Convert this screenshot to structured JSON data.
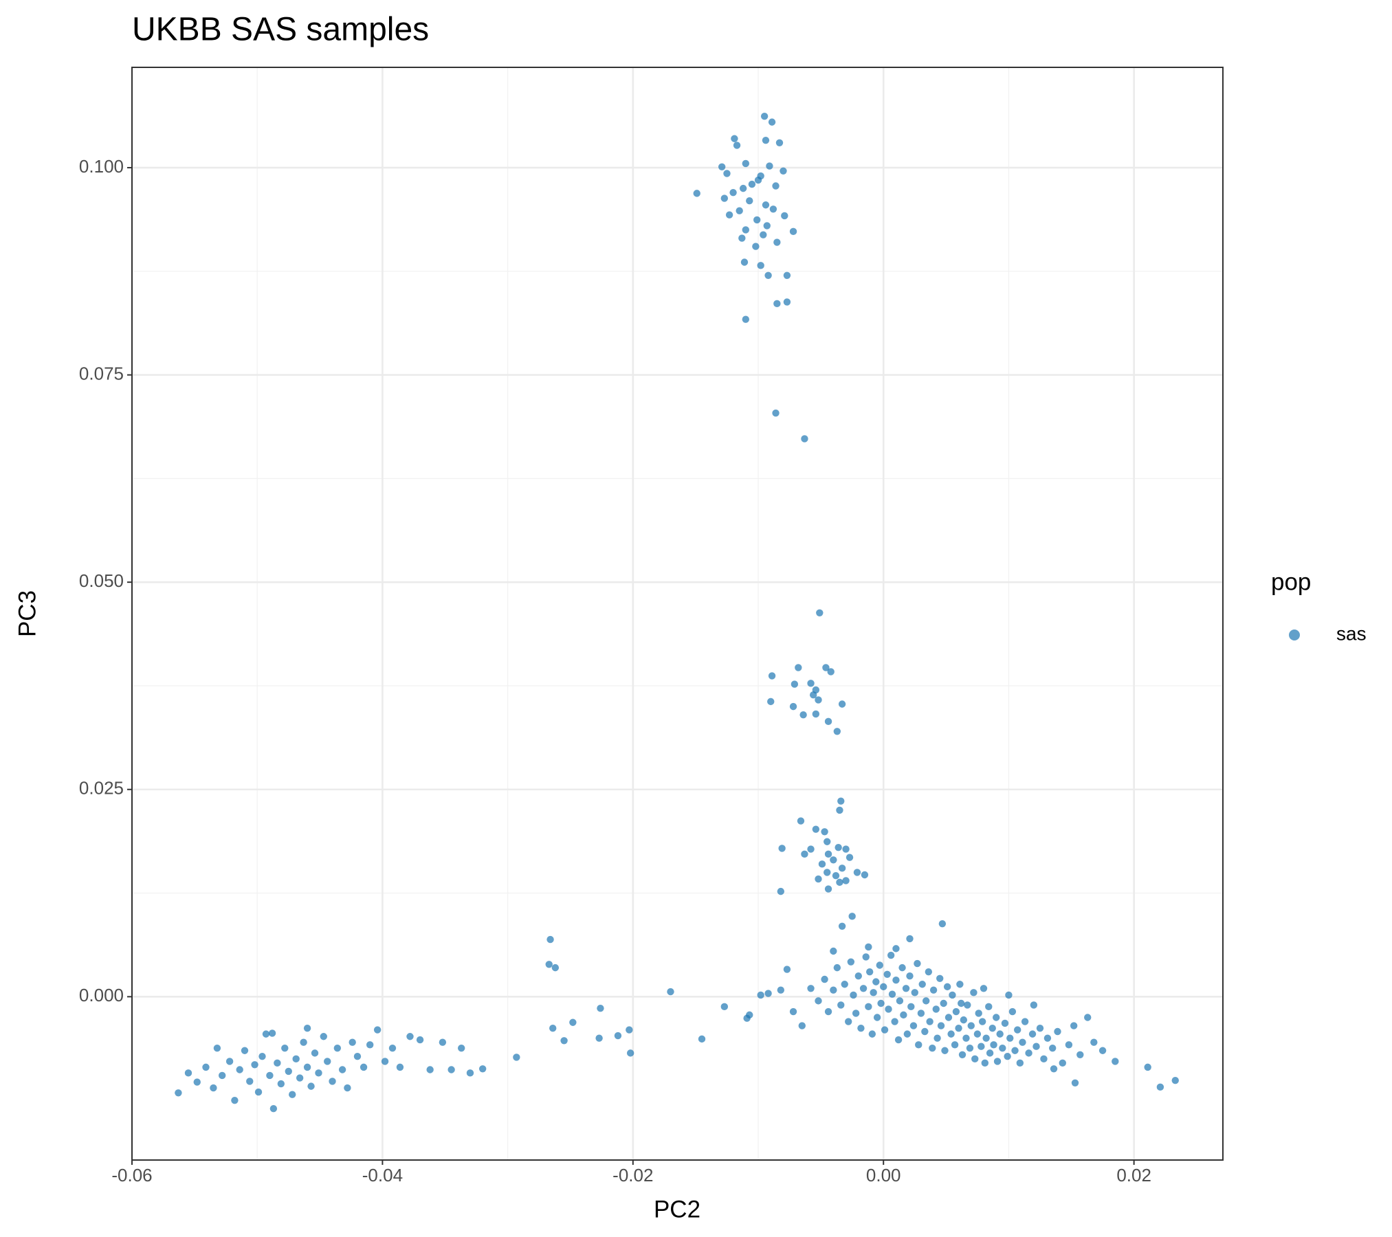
{
  "chart_data": {
    "type": "scatter",
    "title": "UKBB SAS samples",
    "x_label": "PC2",
    "y_label": "PC3",
    "legend_title": "pop",
    "xlim": [
      -0.06,
      0.0271
    ],
    "ylim": [
      -0.0197,
      0.1121
    ],
    "xticks": [
      -0.06,
      -0.04,
      -0.02,
      {
        "value": 0,
        "label": "0.00"
      },
      0.02
    ],
    "yticks": [
      {
        "value": 0,
        "label": "0.000"
      },
      0.025,
      {
        "value": 0.05,
        "label": "0.050"
      },
      0.075,
      {
        "value": 0.1,
        "label": "0.100"
      }
    ],
    "grid": true,
    "legend_position": "right",
    "series": [
      {
        "name": "sas",
        "color": "#1f77b4",
        "points": [
          [
            -0.0095,
            0.1062
          ],
          [
            -0.0089,
            0.1055
          ],
          [
            -0.0119,
            0.1035
          ],
          [
            -0.0117,
            0.1027
          ],
          [
            -0.0094,
            0.1033
          ],
          [
            -0.0083,
            0.103
          ],
          [
            -0.0129,
            0.1001
          ],
          [
            -0.0125,
            0.0993
          ],
          [
            -0.011,
            0.1005
          ],
          [
            -0.0091,
            0.1002
          ],
          [
            -0.008,
            0.0996
          ],
          [
            -0.01,
            0.0985
          ],
          [
            -0.0105,
            0.098
          ],
          [
            -0.0098,
            0.099
          ],
          [
            -0.0112,
            0.0975
          ],
          [
            -0.012,
            0.097
          ],
          [
            -0.0086,
            0.0978
          ],
          [
            -0.0149,
            0.0969
          ],
          [
            -0.0127,
            0.0963
          ],
          [
            -0.0107,
            0.096
          ],
          [
            -0.0094,
            0.0955
          ],
          [
            -0.0115,
            0.0948
          ],
          [
            -0.0123,
            0.0943
          ],
          [
            -0.0088,
            0.095
          ],
          [
            -0.0101,
            0.0937
          ],
          [
            -0.0079,
            0.0942
          ],
          [
            -0.0093,
            0.093
          ],
          [
            -0.011,
            0.0925
          ],
          [
            -0.0072,
            0.0923
          ],
          [
            -0.0096,
            0.0919
          ],
          [
            -0.0113,
            0.0915
          ],
          [
            -0.0085,
            0.091
          ],
          [
            -0.0102,
            0.0905
          ],
          [
            -0.0111,
            0.0886
          ],
          [
            -0.0098,
            0.0882
          ],
          [
            -0.0092,
            0.087
          ],
          [
            -0.0077,
            0.087
          ],
          [
            -0.0085,
            0.0836
          ],
          [
            -0.0077,
            0.0838
          ],
          [
            -0.011,
            0.0817
          ],
          [
            -0.0086,
            0.0704
          ],
          [
            -0.0063,
            0.0673
          ],
          [
            -0.0051,
            0.0463
          ],
          [
            -0.0089,
            0.0387
          ],
          [
            -0.0068,
            0.0397
          ],
          [
            -0.0046,
            0.0397
          ],
          [
            -0.0042,
            0.0392
          ],
          [
            -0.0071,
            0.0377
          ],
          [
            -0.0058,
            0.0378
          ],
          [
            -0.0054,
            0.037
          ],
          [
            -0.0056,
            0.0364
          ],
          [
            -0.0052,
            0.0358
          ],
          [
            -0.009,
            0.0356
          ],
          [
            -0.0072,
            0.035
          ],
          [
            -0.0033,
            0.0353
          ],
          [
            -0.0064,
            0.034
          ],
          [
            -0.0054,
            0.0341
          ],
          [
            -0.0044,
            0.0332
          ],
          [
            -0.0037,
            0.032
          ],
          [
            -0.0034,
            0.0236
          ],
          [
            -0.0035,
            0.0225
          ],
          [
            -0.0066,
            0.0212
          ],
          [
            -0.0054,
            0.0202
          ],
          [
            -0.0047,
            0.0199
          ],
          [
            -0.0045,
            0.0187
          ],
          [
            -0.0044,
            0.0172
          ],
          [
            -0.0036,
            0.018
          ],
          [
            -0.003,
            0.0178
          ],
          [
            -0.0081,
            0.0179
          ],
          [
            -0.0058,
            0.0178
          ],
          [
            -0.0027,
            0.0168
          ],
          [
            -0.004,
            0.0165
          ],
          [
            -0.0049,
            0.016
          ],
          [
            -0.0033,
            0.0155
          ],
          [
            -0.0063,
            0.0172
          ],
          [
            -0.0045,
            0.015
          ],
          [
            -0.0038,
            0.0146
          ],
          [
            -0.0021,
            0.015
          ],
          [
            -0.0052,
            0.0142
          ],
          [
            -0.003,
            0.014
          ],
          [
            -0.0082,
            0.0127
          ],
          [
            -0.0044,
            0.013
          ],
          [
            -0.0035,
            0.0138
          ],
          [
            -0.0015,
            0.0147
          ],
          [
            -0.0266,
            0.0069
          ],
          [
            -0.0267,
            0.0039
          ],
          [
            -0.0262,
            0.0035
          ],
          [
            -0.0293,
            -0.0073
          ],
          [
            -0.0264,
            -0.0038
          ],
          [
            -0.0255,
            -0.0053
          ],
          [
            -0.0248,
            -0.0031
          ],
          [
            -0.0226,
            -0.0014
          ],
          [
            -0.0227,
            -0.005
          ],
          [
            -0.0212,
            -0.0047
          ],
          [
            -0.0203,
            -0.004
          ],
          [
            -0.0202,
            -0.0068
          ],
          [
            -0.017,
            0.0006
          ],
          [
            -0.0145,
            -0.0051
          ],
          [
            -0.0127,
            -0.0012
          ],
          [
            -0.0109,
            -0.0026
          ],
          [
            -0.0107,
            -0.0022
          ],
          [
            -0.0098,
            0.0002
          ],
          [
            -0.0092,
            0.0004
          ],
          [
            -0.0058,
            0.001
          ],
          [
            -0.0052,
            -0.0005
          ],
          [
            -0.0047,
            0.0021
          ],
          [
            -0.0044,
            -0.0018
          ],
          [
            -0.004,
            0.0008
          ],
          [
            -0.0037,
            0.0035
          ],
          [
            -0.0034,
            -0.001
          ],
          [
            -0.0031,
            0.0015
          ],
          [
            -0.0028,
            -0.003
          ],
          [
            -0.0026,
            0.0042
          ],
          [
            -0.0024,
            0.0002
          ],
          [
            -0.0022,
            -0.002
          ],
          [
            -0.002,
            0.0025
          ],
          [
            -0.0018,
            -0.0038
          ],
          [
            -0.0016,
            0.001
          ],
          [
            -0.0014,
            0.0048
          ],
          [
            -0.0012,
            -0.0012
          ],
          [
            -0.0011,
            0.003
          ],
          [
            -0.0009,
            -0.0045
          ],
          [
            -0.0008,
            0.0005
          ],
          [
            -0.0006,
            0.0018
          ],
          [
            -0.0005,
            -0.0025
          ],
          [
            -0.0003,
            0.0038
          ],
          [
            -0.0002,
            -0.0008
          ],
          [
            0.0,
            0.0012
          ],
          [
            0.0001,
            -0.004
          ],
          [
            0.0003,
            0.0027
          ],
          [
            0.0004,
            -0.0015
          ],
          [
            0.0006,
            0.005
          ],
          [
            0.0007,
            0.0003
          ],
          [
            0.0009,
            -0.003
          ],
          [
            0.001,
            0.002
          ],
          [
            0.0012,
            -0.0052
          ],
          [
            0.0013,
            -0.0005
          ],
          [
            0.0015,
            0.0035
          ],
          [
            0.0016,
            -0.0022
          ],
          [
            0.0018,
            0.001
          ],
          [
            0.0019,
            -0.0045
          ],
          [
            0.0021,
            0.0025
          ],
          [
            0.0022,
            -0.0012
          ],
          [
            0.0024,
            -0.0035
          ],
          [
            0.0025,
            0.0005
          ],
          [
            0.0027,
            0.004
          ],
          [
            0.0028,
            -0.0058
          ],
          [
            0.003,
            -0.002
          ],
          [
            0.0031,
            0.0015
          ],
          [
            0.0033,
            -0.0042
          ],
          [
            0.0034,
            -0.0005
          ],
          [
            0.0036,
            0.003
          ],
          [
            0.0037,
            -0.003
          ],
          [
            0.0039,
            -0.0062
          ],
          [
            0.004,
            0.0008
          ],
          [
            0.0042,
            -0.0015
          ],
          [
            0.0043,
            -0.005
          ],
          [
            0.0045,
            0.0022
          ],
          [
            0.0046,
            -0.0035
          ],
          [
            0.0048,
            -0.0008
          ],
          [
            0.0049,
            -0.0065
          ],
          [
            0.0051,
            0.0012
          ],
          [
            0.0052,
            -0.0025
          ],
          [
            0.0054,
            -0.0045
          ],
          [
            0.0055,
            0.0002
          ],
          [
            0.0057,
            -0.0058
          ],
          [
            0.0058,
            -0.0018
          ],
          [
            0.006,
            -0.0038
          ],
          [
            0.0061,
            0.0015
          ],
          [
            0.0063,
            -0.007
          ],
          [
            0.0064,
            -0.0028
          ],
          [
            0.0066,
            -0.005
          ],
          [
            0.0067,
            -0.001
          ],
          [
            0.0069,
            -0.0062
          ],
          [
            0.007,
            -0.0035
          ],
          [
            0.0072,
            0.0005
          ],
          [
            0.0073,
            -0.0075
          ],
          [
            0.0075,
            -0.0045
          ],
          [
            0.0076,
            -0.002
          ],
          [
            0.0078,
            -0.006
          ],
          [
            0.0079,
            -0.003
          ],
          [
            0.0081,
            -0.008
          ],
          [
            0.0082,
            -0.005
          ],
          [
            0.0084,
            -0.0012
          ],
          [
            0.0085,
            -0.0068
          ],
          [
            0.0087,
            -0.0038
          ],
          [
            0.0088,
            -0.0058
          ],
          [
            0.009,
            -0.0025
          ],
          [
            0.0091,
            -0.0078
          ],
          [
            0.0093,
            -0.0045
          ],
          [
            0.0095,
            -0.0062
          ],
          [
            0.0097,
            -0.0032
          ],
          [
            0.0099,
            -0.0072
          ],
          [
            0.0101,
            -0.005
          ],
          [
            0.0103,
            -0.0018
          ],
          [
            0.0105,
            -0.0065
          ],
          [
            0.0107,
            -0.004
          ],
          [
            0.0109,
            -0.008
          ],
          [
            0.0111,
            -0.0055
          ],
          [
            0.0113,
            -0.003
          ],
          [
            0.0116,
            -0.0068
          ],
          [
            0.0119,
            -0.0045
          ],
          [
            0.0122,
            -0.006
          ],
          [
            0.0125,
            -0.0038
          ],
          [
            0.0128,
            -0.0075
          ],
          [
            0.0131,
            -0.005
          ],
          [
            0.0135,
            -0.0062
          ],
          [
            0.0139,
            -0.0042
          ],
          [
            0.0143,
            -0.008
          ],
          [
            0.0148,
            -0.0058
          ],
          [
            0.0152,
            -0.0035
          ],
          [
            0.0157,
            -0.007
          ],
          [
            0.0163,
            -0.0025
          ],
          [
            0.0168,
            -0.0055
          ],
          [
            0.0175,
            -0.0065
          ],
          [
            0.0185,
            -0.0078
          ],
          [
            0.0211,
            -0.0085
          ],
          [
            0.0221,
            -0.0109
          ],
          [
            0.0233,
            -0.0101
          ],
          [
            0.0153,
            -0.0104
          ],
          [
            0.0136,
            -0.0087
          ],
          [
            0.0047,
            0.0088
          ],
          [
            0.0021,
            0.007
          ],
          [
            -0.0012,
            0.006
          ],
          [
            -0.004,
            0.0055
          ],
          [
            -0.0077,
            0.0033
          ],
          [
            -0.0082,
            0.0008
          ],
          [
            -0.0072,
            -0.0018
          ],
          [
            -0.0065,
            -0.0035
          ],
          [
            -0.0025,
            0.0097
          ],
          [
            -0.0033,
            0.0085
          ],
          [
            0.001,
            0.0058
          ],
          [
            0.0062,
            -0.0008
          ],
          [
            0.008,
            0.001
          ],
          [
            0.01,
            0.0002
          ],
          [
            0.012,
            -0.001
          ],
          [
            -0.0563,
            -0.0116
          ],
          [
            -0.0555,
            -0.0092
          ],
          [
            -0.0548,
            -0.0103
          ],
          [
            -0.0541,
            -0.0085
          ],
          [
            -0.0535,
            -0.011
          ],
          [
            -0.0532,
            -0.0062
          ],
          [
            -0.0528,
            -0.0095
          ],
          [
            -0.0522,
            -0.0078
          ],
          [
            -0.0518,
            -0.0125
          ],
          [
            -0.0514,
            -0.0088
          ],
          [
            -0.051,
            -0.0065
          ],
          [
            -0.0506,
            -0.0102
          ],
          [
            -0.0502,
            -0.0082
          ],
          [
            -0.0499,
            -0.0115
          ],
          [
            -0.0496,
            -0.0072
          ],
          [
            -0.0493,
            -0.0045
          ],
          [
            -0.049,
            -0.0095
          ],
          [
            -0.0487,
            -0.0135
          ],
          [
            -0.0484,
            -0.008
          ],
          [
            -0.0481,
            -0.0105
          ],
          [
            -0.0478,
            -0.0062
          ],
          [
            -0.0475,
            -0.009
          ],
          [
            -0.0472,
            -0.0118
          ],
          [
            -0.0469,
            -0.0075
          ],
          [
            -0.0466,
            -0.0098
          ],
          [
            -0.0463,
            -0.0055
          ],
          [
            -0.046,
            -0.0085
          ],
          [
            -0.0457,
            -0.0108
          ],
          [
            -0.0454,
            -0.0068
          ],
          [
            -0.0451,
            -0.0092
          ],
          [
            -0.0447,
            -0.0048
          ],
          [
            -0.0444,
            -0.0078
          ],
          [
            -0.044,
            -0.0102
          ],
          [
            -0.0436,
            -0.0062
          ],
          [
            -0.0432,
            -0.0088
          ],
          [
            -0.0428,
            -0.011
          ],
          [
            -0.0424,
            -0.0055
          ],
          [
            -0.042,
            -0.0072
          ],
          [
            -0.0415,
            -0.0085
          ],
          [
            -0.041,
            -0.0058
          ],
          [
            -0.0404,
            -0.004
          ],
          [
            -0.0398,
            -0.0078
          ],
          [
            -0.0392,
            -0.0062
          ],
          [
            -0.0386,
            -0.0085
          ],
          [
            -0.0378,
            -0.0048
          ],
          [
            -0.037,
            -0.0052
          ],
          [
            -0.0362,
            -0.0088
          ],
          [
            -0.0352,
            -0.0055
          ],
          [
            -0.0345,
            -0.0088
          ],
          [
            -0.0337,
            -0.0062
          ],
          [
            -0.033,
            -0.0092
          ],
          [
            -0.032,
            -0.0087
          ],
          [
            -0.0488,
            -0.0044
          ],
          [
            -0.046,
            -0.0038
          ]
        ]
      }
    ]
  }
}
